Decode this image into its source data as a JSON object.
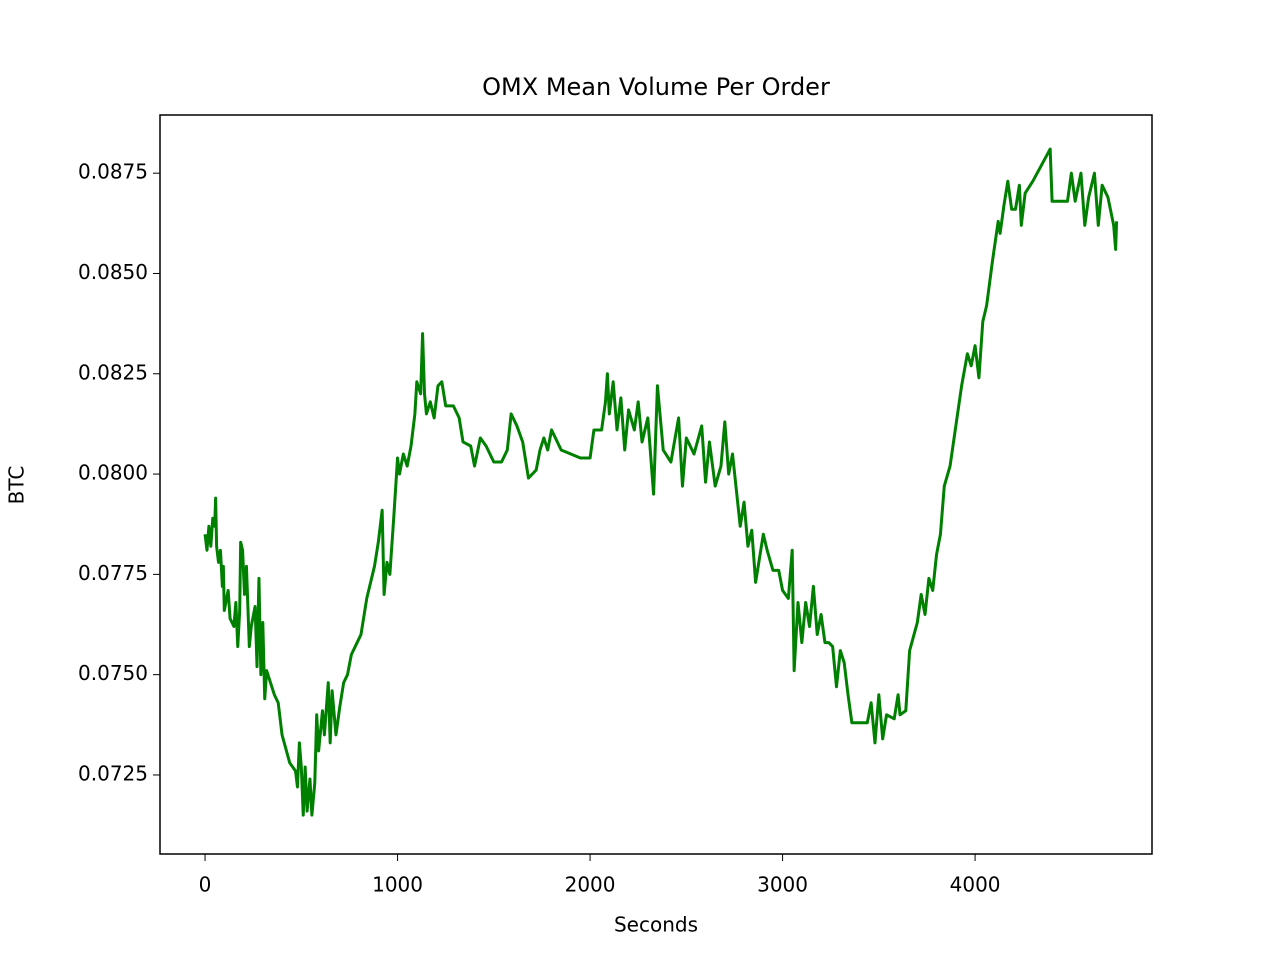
{
  "chart_data": {
    "type": "line",
    "title": "OMX Mean Volume Per Order",
    "xlabel": "Seconds",
    "ylabel": "BTC",
    "xlim": [
      -234,
      4919
    ],
    "ylim": [
      0.07053,
      0.08895
    ],
    "xticks": [
      0,
      1000,
      2000,
      3000,
      4000
    ],
    "yticks": [
      0.0725,
      {
        "value": 0.075,
        "label": "0.0750"
      },
      0.0775,
      {
        "value": 0.08,
        "label": "0.0800"
      },
      0.0825,
      {
        "value": 0.085,
        "label": "0.0850"
      },
      0.0875
    ],
    "series": [
      {
        "color": "#008000",
        "x": [
          0,
          10,
          20,
          30,
          40,
          50,
          55,
          60,
          70,
          80,
          90,
          95,
          100,
          120,
          130,
          150,
          160,
          170,
          180,
          185,
          195,
          205,
          215,
          230,
          240,
          260,
          270,
          280,
          290,
          300,
          310,
          320,
          360,
          380,
          400,
          440,
          470,
          480,
          490,
          500,
          510,
          520,
          530,
          545,
          555,
          570,
          580,
          590,
          610,
          620,
          640,
          650,
          660,
          680,
          700,
          720,
          740,
          760,
          790,
          810,
          840,
          880,
          900,
          920,
          930,
          945,
          960,
          980,
          1000,
          1010,
          1030,
          1050,
          1070,
          1090,
          1100,
          1120,
          1130,
          1140,
          1150,
          1170,
          1190,
          1210,
          1230,
          1250,
          1290,
          1320,
          1340,
          1380,
          1400,
          1430,
          1460,
          1500,
          1540,
          1570,
          1590,
          1620,
          1650,
          1680,
          1720,
          1740,
          1760,
          1780,
          1800,
          1850,
          1900,
          1950,
          2000,
          2020,
          2060,
          2080,
          2090,
          2100,
          2120,
          2140,
          2160,
          2180,
          2200,
          2230,
          2250,
          2270,
          2300,
          2330,
          2350,
          2380,
          2420,
          2460,
          2480,
          2500,
          2540,
          2580,
          2600,
          2620,
          2650,
          2680,
          2700,
          2720,
          2740,
          2760,
          2780,
          2800,
          2820,
          2840,
          2860,
          2880,
          2900,
          2920,
          2950,
          2980,
          3000,
          3030,
          3050,
          3060,
          3080,
          3100,
          3120,
          3140,
          3160,
          3180,
          3200,
          3220,
          3240,
          3260,
          3280,
          3300,
          3320,
          3340,
          3360,
          3400,
          3440,
          3460,
          3480,
          3500,
          3520,
          3540,
          3580,
          3600,
          3610,
          3640,
          3660,
          3700,
          3720,
          3740,
          3760,
          3780,
          3800,
          3820,
          3840,
          3870,
          3900,
          3930,
          3960,
          3980,
          4000,
          4020,
          4040,
          4060,
          4090,
          4120,
          4130,
          4150,
          4170,
          4190,
          4210,
          4230,
          4240,
          4260,
          4300,
          4390,
          4400,
          4480,
          4500,
          4520,
          4550,
          4570,
          4590,
          4620,
          4640,
          4660,
          4690,
          4720,
          4730,
          4735
        ],
        "values": [
          0.0785,
          0.0781,
          0.0787,
          0.0782,
          0.0789,
          0.0787,
          0.0794,
          0.0782,
          0.0778,
          0.0781,
          0.0772,
          0.0777,
          0.0766,
          0.0771,
          0.0764,
          0.0762,
          0.0768,
          0.0757,
          0.0766,
          0.0783,
          0.0781,
          0.077,
          0.0777,
          0.0757,
          0.0762,
          0.0767,
          0.0752,
          0.0774,
          0.075,
          0.0763,
          0.0744,
          0.0751,
          0.0745,
          0.0743,
          0.0735,
          0.0728,
          0.0726,
          0.0722,
          0.0733,
          0.0727,
          0.0715,
          0.0727,
          0.0716,
          0.0724,
          0.0715,
          0.0723,
          0.074,
          0.0731,
          0.0741,
          0.0735,
          0.0748,
          0.0733,
          0.0746,
          0.0735,
          0.0742,
          0.0748,
          0.075,
          0.0755,
          0.0758,
          0.076,
          0.0769,
          0.0777,
          0.0783,
          0.0791,
          0.077,
          0.0778,
          0.0775,
          0.0789,
          0.0804,
          0.08,
          0.0805,
          0.0802,
          0.0807,
          0.0815,
          0.0823,
          0.082,
          0.0835,
          0.082,
          0.0815,
          0.0818,
          0.0814,
          0.0822,
          0.0823,
          0.0817,
          0.0817,
          0.0814,
          0.0808,
          0.0807,
          0.0802,
          0.0809,
          0.0807,
          0.0803,
          0.0803,
          0.0806,
          0.0815,
          0.0812,
          0.0808,
          0.0799,
          0.0801,
          0.0806,
          0.0809,
          0.0806,
          0.0811,
          0.0806,
          0.0805,
          0.0804,
          0.0804,
          0.0811,
          0.0811,
          0.0818,
          0.0825,
          0.0815,
          0.0823,
          0.0811,
          0.0819,
          0.0806,
          0.0816,
          0.0811,
          0.0818,
          0.0808,
          0.0814,
          0.0795,
          0.0822,
          0.0806,
          0.0803,
          0.0814,
          0.0797,
          0.0809,
          0.0805,
          0.0812,
          0.0798,
          0.0808,
          0.0797,
          0.0802,
          0.0813,
          0.08,
          0.0805,
          0.0796,
          0.0787,
          0.0793,
          0.0782,
          0.0786,
          0.0773,
          0.0779,
          0.0785,
          0.0781,
          0.0776,
          0.0776,
          0.0771,
          0.0769,
          0.0781,
          0.0751,
          0.0768,
          0.0758,
          0.0768,
          0.0762,
          0.0772,
          0.076,
          0.0765,
          0.0758,
          0.0758,
          0.0757,
          0.0747,
          0.0756,
          0.0753,
          0.0745,
          0.0738,
          0.0738,
          0.0738,
          0.0743,
          0.0733,
          0.0745,
          0.0734,
          0.074,
          0.0739,
          0.0745,
          0.074,
          0.0741,
          0.0756,
          0.0763,
          0.077,
          0.0765,
          0.0774,
          0.0771,
          0.078,
          0.0785,
          0.0797,
          0.0802,
          0.0812,
          0.0822,
          0.083,
          0.0827,
          0.0832,
          0.0824,
          0.0838,
          0.0842,
          0.0853,
          0.0863,
          0.086,
          0.0867,
          0.0873,
          0.0866,
          0.0866,
          0.0872,
          0.0862,
          0.087,
          0.0873,
          0.0881,
          0.0868,
          0.0868,
          0.0875,
          0.0868,
          0.0875,
          0.0862,
          0.0869,
          0.0875,
          0.0862,
          0.0872,
          0.0869,
          0.0862,
          0.0856,
          0.0863
        ]
      }
    ]
  }
}
